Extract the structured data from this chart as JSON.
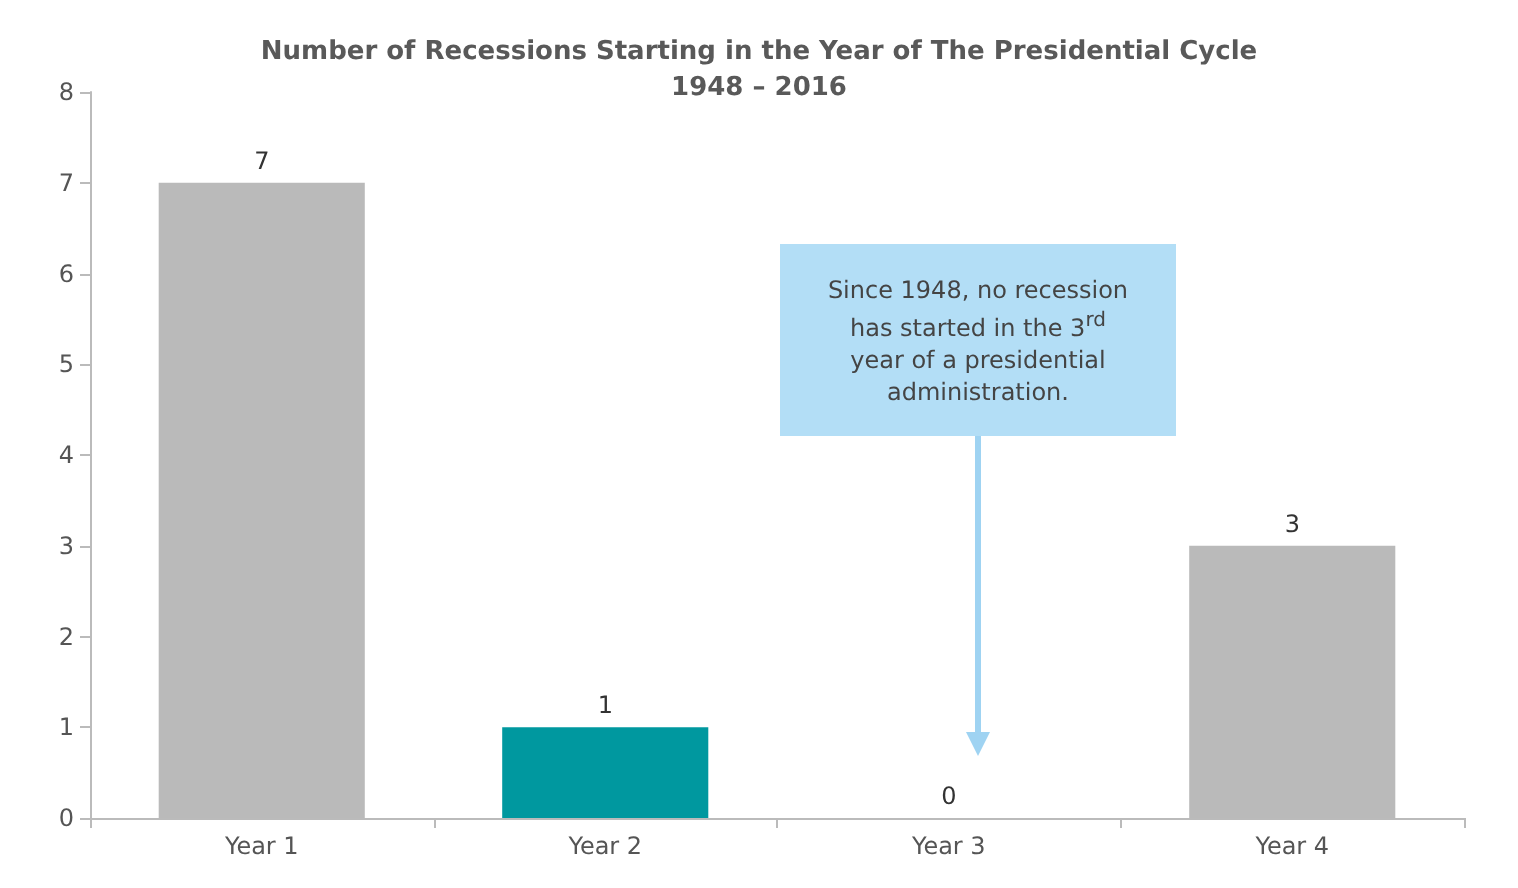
{
  "chart_data": {
    "type": "bar",
    "title": "Number of Recessions Starting in the Year of The Presidential Cycle\n1948 – 2016",
    "categories": [
      "Year 1",
      "Year 2",
      "Year 3",
      "Year 4"
    ],
    "values": [
      7,
      1,
      0,
      3
    ],
    "colors": [
      "#bababa",
      "#00989f",
      "#bababa",
      "#bababa"
    ],
    "ylim": [
      0,
      8
    ],
    "yticks": [
      0,
      1,
      2,
      3,
      4,
      5,
      6,
      7,
      8
    ],
    "grid": false,
    "data_labels": true,
    "annotations": [
      "Since 1948, no recession has started in the 3$^{rd}$ year of a presidential administration."
    ]
  }
}
